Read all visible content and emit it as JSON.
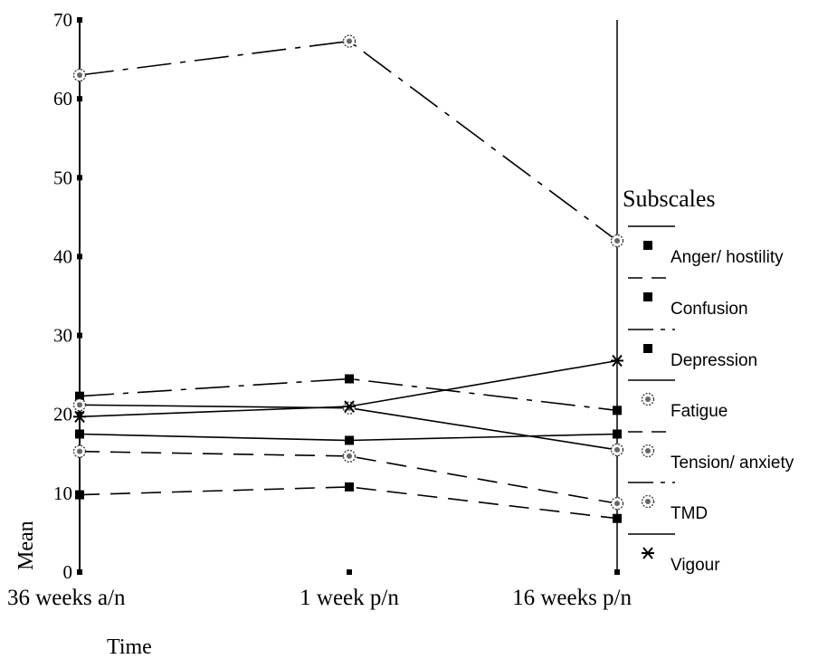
{
  "chart_data": {
    "type": "line",
    "xlabel": "Time",
    "ylabel": "Mean",
    "categories": [
      "36 weeks a/n",
      "1 week p/n",
      "16 weeks p/n"
    ],
    "ylim": [
      0,
      70
    ],
    "yticks": [
      0,
      10,
      20,
      30,
      40,
      50,
      60,
      70
    ],
    "grid": false,
    "legend": {
      "title": "Subscales",
      "placement": "right"
    },
    "series": [
      {
        "name": "Anger/ hostility",
        "values": [
          17.5,
          16.7,
          17.5
        ],
        "marker": "square",
        "dash": "solid"
      },
      {
        "name": "Confusion",
        "values": [
          9.8,
          10.8,
          6.8
        ],
        "marker": "square",
        "dash": "dashed"
      },
      {
        "name": "Depression",
        "values": [
          22.3,
          24.5,
          20.5
        ],
        "marker": "square",
        "dash": "dashdot"
      },
      {
        "name": "Fatigue",
        "values": [
          21.2,
          20.8,
          15.5
        ],
        "marker": "diamond-circle",
        "dash": "solid"
      },
      {
        "name": "Tension/ anxiety",
        "values": [
          15.3,
          14.7,
          8.7
        ],
        "marker": "diamond-circle",
        "dash": "dashed"
      },
      {
        "name": "TMD",
        "values": [
          63.0,
          67.3,
          42.0
        ],
        "marker": "diamond-circle",
        "dash": "dashdot"
      },
      {
        "name": "Vigour",
        "values": [
          19.7,
          21.0,
          26.8
        ],
        "marker": "star",
        "dash": "solid"
      }
    ]
  }
}
